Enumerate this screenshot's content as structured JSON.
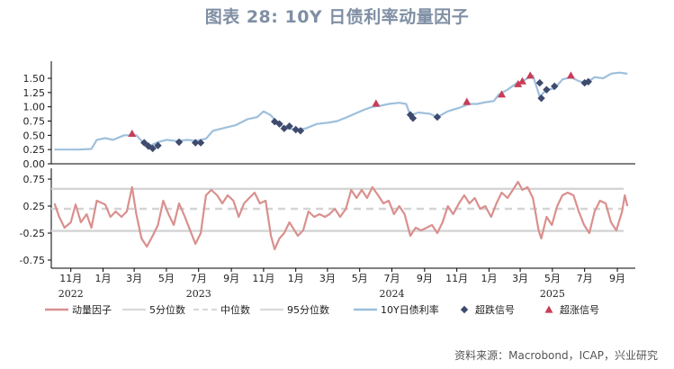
{
  "title": "图表 28: 10Y 日债利率动量因子",
  "source": "资料来源：Macrobond，ICAP，兴业研究",
  "colors": {
    "momentum": "#d9908e",
    "quantile5": "#d9d9d9",
    "median": "#d9d9d9",
    "quantile95": "#d9d9d9",
    "yield": "#9ec0dc",
    "overbought": "#3e4b6e",
    "oversold": "#c83d57"
  },
  "chart_data": [
    {
      "type": "line",
      "panel": "top",
      "x_axis": "date",
      "ylim": [
        0.0,
        1.8
      ],
      "yticks": [
        0.0,
        0.25,
        0.5,
        0.75,
        1.0,
        1.25,
        1.5
      ],
      "ytick_labels": [
        "0.00",
        "0.25",
        "0.50",
        "0.75",
        "1.00",
        "1.25",
        "1.50"
      ],
      "series": [
        {
          "name": "10Y日债利率",
          "points": [
            [
              "2022-10-01",
              0.25
            ],
            [
              "2022-10-20",
              0.25
            ],
            [
              "2022-11-15",
              0.25
            ],
            [
              "2022-12-10",
              0.26
            ],
            [
              "2022-12-20",
              0.42
            ],
            [
              "2023-01-05",
              0.45
            ],
            [
              "2023-01-20",
              0.42
            ],
            [
              "2023-02-10",
              0.5
            ],
            [
              "2023-03-05",
              0.5
            ],
            [
              "2023-03-20",
              0.35
            ],
            [
              "2023-04-01",
              0.32
            ],
            [
              "2023-04-15",
              0.38
            ],
            [
              "2023-05-01",
              0.42
            ],
            [
              "2023-05-20",
              0.4
            ],
            [
              "2023-06-10",
              0.42
            ],
            [
              "2023-06-25",
              0.4
            ],
            [
              "2023-07-15",
              0.44
            ],
            [
              "2023-07-28",
              0.58
            ],
            [
              "2023-08-15",
              0.62
            ],
            [
              "2023-09-10",
              0.68
            ],
            [
              "2023-10-01",
              0.78
            ],
            [
              "2023-10-20",
              0.82
            ],
            [
              "2023-11-01",
              0.92
            ],
            [
              "2023-11-15",
              0.85
            ],
            [
              "2023-11-28",
              0.7
            ],
            [
              "2023-12-15",
              0.62
            ],
            [
              "2024-01-05",
              0.6
            ],
            [
              "2024-01-20",
              0.62
            ],
            [
              "2024-02-10",
              0.7
            ],
            [
              "2024-03-01",
              0.72
            ],
            [
              "2024-03-20",
              0.75
            ],
            [
              "2024-04-15",
              0.85
            ],
            [
              "2024-05-10",
              0.95
            ],
            [
              "2024-05-25",
              1.0
            ],
            [
              "2024-06-10",
              1.02
            ],
            [
              "2024-06-25",
              1.05
            ],
            [
              "2024-07-15",
              1.07
            ],
            [
              "2024-07-28",
              1.05
            ],
            [
              "2024-08-05",
              0.85
            ],
            [
              "2024-08-20",
              0.9
            ],
            [
              "2024-09-10",
              0.88
            ],
            [
              "2024-09-25",
              0.82
            ],
            [
              "2024-10-15",
              0.92
            ],
            [
              "2024-11-05",
              0.98
            ],
            [
              "2024-11-25",
              1.05
            ],
            [
              "2024-12-10",
              1.05
            ],
            [
              "2024-12-25",
              1.08
            ],
            [
              "2025-01-10",
              1.1
            ],
            [
              "2025-01-20",
              1.22
            ],
            [
              "2025-02-05",
              1.3
            ],
            [
              "2025-02-20",
              1.4
            ],
            [
              "2025-03-05",
              1.45
            ],
            [
              "2025-03-25",
              1.55
            ],
            [
              "2025-04-07",
              1.18
            ],
            [
              "2025-04-20",
              1.3
            ],
            [
              "2025-05-05",
              1.32
            ],
            [
              "2025-05-20",
              1.48
            ],
            [
              "2025-06-05",
              1.52
            ],
            [
              "2025-06-20",
              1.45
            ],
            [
              "2025-07-05",
              1.42
            ],
            [
              "2025-07-20",
              1.52
            ],
            [
              "2025-08-05",
              1.5
            ],
            [
              "2025-08-20",
              1.58
            ],
            [
              "2025-09-05",
              1.6
            ],
            [
              "2025-09-20",
              1.58
            ]
          ]
        },
        {
          "name": "超跌信号",
          "marker": "diamond",
          "points": [
            [
              "2023-03-20",
              0.37
            ],
            [
              "2023-03-28",
              0.31
            ],
            [
              "2023-04-05",
              0.27
            ],
            [
              "2023-04-15",
              0.32
            ],
            [
              "2023-05-25",
              0.38
            ],
            [
              "2023-06-25",
              0.37
            ],
            [
              "2023-07-05",
              0.37
            ],
            [
              "2023-11-22",
              0.74
            ],
            [
              "2023-12-01",
              0.7
            ],
            [
              "2023-12-10",
              0.62
            ],
            [
              "2023-12-20",
              0.66
            ],
            [
              "2024-01-01",
              0.6
            ],
            [
              "2024-01-10",
              0.58
            ],
            [
              "2024-08-05",
              0.86
            ],
            [
              "2024-08-10",
              0.8
            ],
            [
              "2024-09-25",
              0.82
            ],
            [
              "2025-04-07",
              1.42
            ],
            [
              "2025-04-10",
              1.15
            ],
            [
              "2025-04-20",
              1.3
            ],
            [
              "2025-05-05",
              1.36
            ],
            [
              "2025-07-01",
              1.42
            ],
            [
              "2025-07-08",
              1.44
            ]
          ]
        },
        {
          "name": "超涨信号",
          "marker": "triangle",
          "points": [
            [
              "2023-02-25",
              0.53
            ],
            [
              "2024-06-01",
              1.06
            ],
            [
              "2024-11-20",
              1.09
            ],
            [
              "2025-01-25",
              1.22
            ],
            [
              "2025-02-25",
              1.4
            ],
            [
              "2025-03-05",
              1.45
            ],
            [
              "2025-03-20",
              1.55
            ],
            [
              "2025-06-05",
              1.55
            ]
          ]
        }
      ]
    },
    {
      "type": "line",
      "panel": "bottom",
      "x_axis": "date",
      "ylim": [
        -0.9,
        0.95
      ],
      "yticks": [
        -0.75,
        -0.25,
        0.25,
        0.75
      ],
      "ytick_labels": [
        "-0.75",
        "-0.25",
        "0.25",
        "0.75"
      ],
      "x_tick_labels": [
        "11月",
        "1月",
        "3月",
        "5月",
        "7月",
        "9月",
        "11月",
        "1月",
        "3月",
        "5月",
        "7月",
        "9月",
        "11月",
        "1月",
        "3月",
        "5月",
        "7月",
        "9月"
      ],
      "x_tick_dates": [
        "2022-11-01",
        "2023-01-01",
        "2023-03-01",
        "2023-05-01",
        "2023-07-01",
        "2023-09-01",
        "2023-11-01",
        "2024-01-01",
        "2024-03-01",
        "2024-05-01",
        "2024-07-01",
        "2024-09-01",
        "2024-11-01",
        "2025-01-01",
        "2025-03-01",
        "2025-05-01",
        "2025-07-01",
        "2025-09-01"
      ],
      "year_labels": [
        {
          "label": "2022",
          "date": "2022-11-01"
        },
        {
          "label": "2023",
          "date": "2023-07-01"
        },
        {
          "label": "2024",
          "date": "2024-07-01"
        },
        {
          "label": "2025",
          "date": "2025-05-01"
        }
      ],
      "reference_lines": [
        {
          "name": "5分位数",
          "value": -0.21
        },
        {
          "name": "中位数",
          "value": 0.2
        },
        {
          "name": "95分位数",
          "value": 0.57
        }
      ],
      "series": [
        {
          "name": "动量因子",
          "points": [
            [
              "2022-10-01",
              0.3
            ],
            [
              "2022-10-10",
              0.05
            ],
            [
              "2022-10-20",
              -0.15
            ],
            [
              "2022-11-01",
              -0.05
            ],
            [
              "2022-11-10",
              0.28
            ],
            [
              "2022-11-20",
              -0.05
            ],
            [
              "2022-12-01",
              0.1
            ],
            [
              "2022-12-10",
              -0.15
            ],
            [
              "2022-12-20",
              0.35
            ],
            [
              "2023-01-05",
              0.28
            ],
            [
              "2023-01-15",
              0.05
            ],
            [
              "2023-01-25",
              0.15
            ],
            [
              "2023-02-05",
              0.05
            ],
            [
              "2023-02-15",
              0.15
            ],
            [
              "2023-02-25",
              0.6
            ],
            [
              "2023-03-05",
              0.1
            ],
            [
              "2023-03-15",
              -0.35
            ],
            [
              "2023-03-25",
              -0.5
            ],
            [
              "2023-04-05",
              -0.3
            ],
            [
              "2023-04-15",
              -0.1
            ],
            [
              "2023-04-25",
              0.35
            ],
            [
              "2023-05-05",
              0.1
            ],
            [
              "2023-05-15",
              -0.1
            ],
            [
              "2023-05-25",
              0.3
            ],
            [
              "2023-06-05",
              0.05
            ],
            [
              "2023-06-15",
              -0.2
            ],
            [
              "2023-06-25",
              -0.45
            ],
            [
              "2023-07-05",
              -0.25
            ],
            [
              "2023-07-15",
              0.45
            ],
            [
              "2023-07-25",
              0.55
            ],
            [
              "2023-08-05",
              0.45
            ],
            [
              "2023-08-15",
              0.3
            ],
            [
              "2023-08-25",
              0.45
            ],
            [
              "2023-09-05",
              0.35
            ],
            [
              "2023-09-15",
              0.05
            ],
            [
              "2023-09-25",
              0.3
            ],
            [
              "2023-10-05",
              0.4
            ],
            [
              "2023-10-15",
              0.5
            ],
            [
              "2023-10-25",
              0.3
            ],
            [
              "2023-11-05",
              0.35
            ],
            [
              "2023-11-15",
              -0.3
            ],
            [
              "2023-11-22",
              -0.55
            ],
            [
              "2023-12-01",
              -0.35
            ],
            [
              "2023-12-10",
              -0.25
            ],
            [
              "2023-12-20",
              -0.05
            ],
            [
              "2024-01-05",
              -0.3
            ],
            [
              "2024-01-15",
              -0.2
            ],
            [
              "2024-01-25",
              0.15
            ],
            [
              "2024-02-05",
              0.05
            ],
            [
              "2024-02-15",
              0.1
            ],
            [
              "2024-02-25",
              0.05
            ],
            [
              "2024-03-05",
              0.1
            ],
            [
              "2024-03-15",
              0.2
            ],
            [
              "2024-03-25",
              0.05
            ],
            [
              "2024-04-05",
              0.2
            ],
            [
              "2024-04-15",
              0.55
            ],
            [
              "2024-04-25",
              0.4
            ],
            [
              "2024-05-05",
              0.55
            ],
            [
              "2024-05-15",
              0.4
            ],
            [
              "2024-05-25",
              0.6
            ],
            [
              "2024-06-05",
              0.45
            ],
            [
              "2024-06-15",
              0.3
            ],
            [
              "2024-06-25",
              0.35
            ],
            [
              "2024-07-05",
              0.1
            ],
            [
              "2024-07-15",
              0.25
            ],
            [
              "2024-07-25",
              0.1
            ],
            [
              "2024-08-05",
              -0.3
            ],
            [
              "2024-08-15",
              -0.15
            ],
            [
              "2024-08-25",
              -0.2
            ],
            [
              "2024-09-05",
              -0.15
            ],
            [
              "2024-09-15",
              -0.1
            ],
            [
              "2024-09-25",
              -0.25
            ],
            [
              "2024-10-05",
              -0.05
            ],
            [
              "2024-10-15",
              0.25
            ],
            [
              "2024-10-25",
              0.1
            ],
            [
              "2024-11-05",
              0.3
            ],
            [
              "2024-11-15",
              0.45
            ],
            [
              "2024-11-25",
              0.3
            ],
            [
              "2024-12-05",
              0.4
            ],
            [
              "2024-12-15",
              0.2
            ],
            [
              "2024-12-25",
              0.25
            ],
            [
              "2025-01-05",
              0.05
            ],
            [
              "2025-01-15",
              0.3
            ],
            [
              "2025-01-25",
              0.5
            ],
            [
              "2025-02-05",
              0.4
            ],
            [
              "2025-02-15",
              0.55
            ],
            [
              "2025-02-25",
              0.7
            ],
            [
              "2025-03-05",
              0.55
            ],
            [
              "2025-03-15",
              0.6
            ],
            [
              "2025-03-25",
              0.4
            ],
            [
              "2025-04-05",
              -0.2
            ],
            [
              "2025-04-10",
              -0.35
            ],
            [
              "2025-04-20",
              0.05
            ],
            [
              "2025-04-30",
              -0.1
            ],
            [
              "2025-05-10",
              0.25
            ],
            [
              "2025-05-20",
              0.45
            ],
            [
              "2025-05-30",
              0.5
            ],
            [
              "2025-06-10",
              0.45
            ],
            [
              "2025-06-20",
              0.15
            ],
            [
              "2025-06-30",
              -0.1
            ],
            [
              "2025-07-10",
              -0.25
            ],
            [
              "2025-07-20",
              0.15
            ],
            [
              "2025-07-30",
              0.35
            ],
            [
              "2025-08-10",
              0.3
            ],
            [
              "2025-08-20",
              -0.05
            ],
            [
              "2025-08-30",
              -0.2
            ],
            [
              "2025-09-10",
              0.15
            ],
            [
              "2025-09-15",
              0.45
            ],
            [
              "2025-09-20",
              0.25
            ]
          ]
        }
      ]
    }
  ],
  "legend": {
    "placement": "bottom",
    "items": [
      {
        "label": "动量因子",
        "kind": "line-thick",
        "color": "#d9908e"
      },
      {
        "label": "5分位数",
        "kind": "line",
        "color": "#d9d9d9"
      },
      {
        "label": "中位数",
        "kind": "dash",
        "color": "#d9d9d9"
      },
      {
        "label": "95分位数",
        "kind": "line",
        "color": "#d9d9d9"
      },
      {
        "label": "10Y日债利率",
        "kind": "line-thick",
        "color": "#9ec0dc"
      },
      {
        "label": "超跌信号",
        "kind": "diamond",
        "color": "#3e4b6e"
      },
      {
        "label": "超涨信号",
        "kind": "triangle",
        "color": "#c83d57"
      }
    ]
  }
}
